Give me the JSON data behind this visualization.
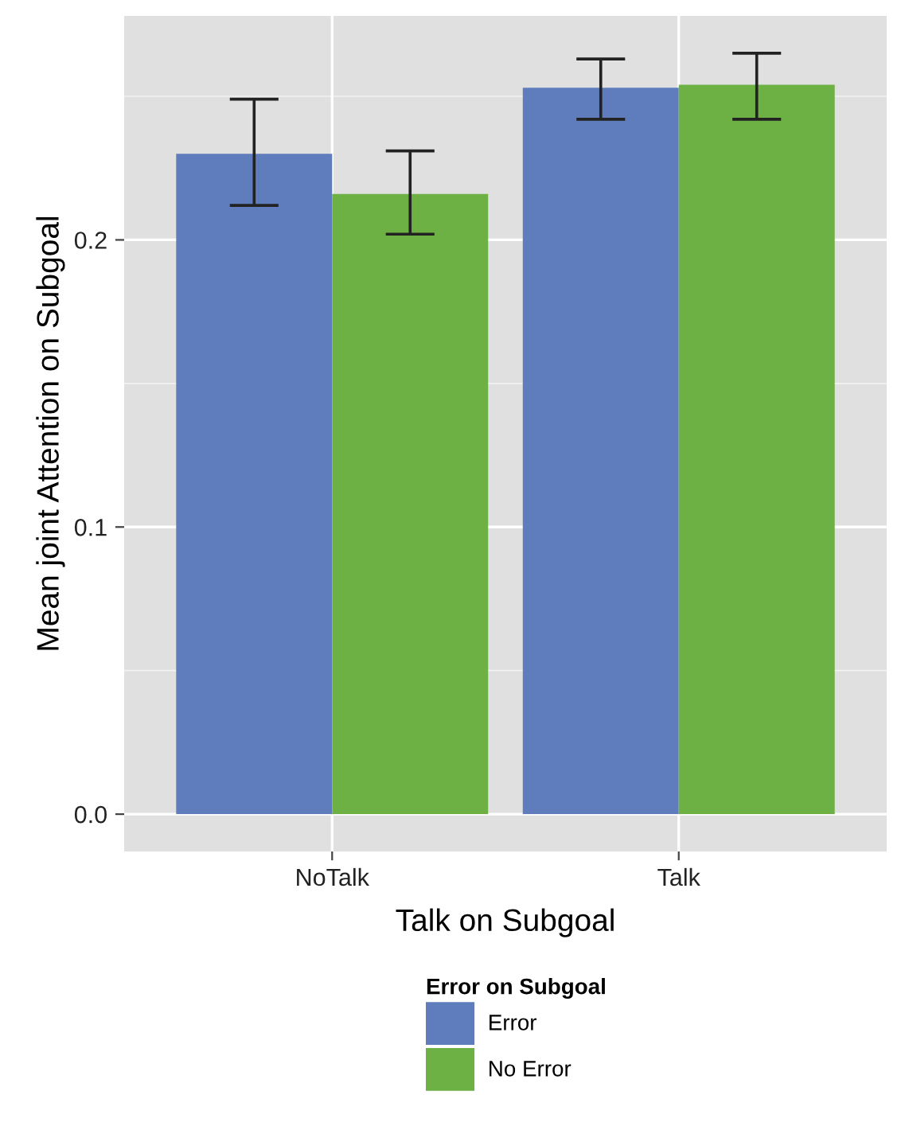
{
  "chart_data": {
    "type": "bar",
    "xlabel": "Talk on Subgoal",
    "ylabel": "Mean joint Attention on Subgoal",
    "legend_title": "Error on Subgoal",
    "categories": [
      "NoTalk",
      "Talk"
    ],
    "series": [
      {
        "name": "Error",
        "color": "#5f7dbd",
        "values": [
          0.23,
          0.253
        ],
        "errors": [
          [
            0.212,
            0.249
          ],
          [
            0.242,
            0.263
          ]
        ]
      },
      {
        "name": "No Error",
        "color": "#6db043",
        "values": [
          0.216,
          0.254
        ],
        "errors": [
          [
            0.202,
            0.231
          ],
          [
            0.242,
            0.265
          ]
        ]
      }
    ],
    "ylim": [
      -0.013,
      0.278
    ],
    "yticks": [
      {
        "value": 0.0,
        "label": "0.0"
      },
      0.1,
      0.2
    ],
    "grid": true,
    "legend": "bottom"
  }
}
